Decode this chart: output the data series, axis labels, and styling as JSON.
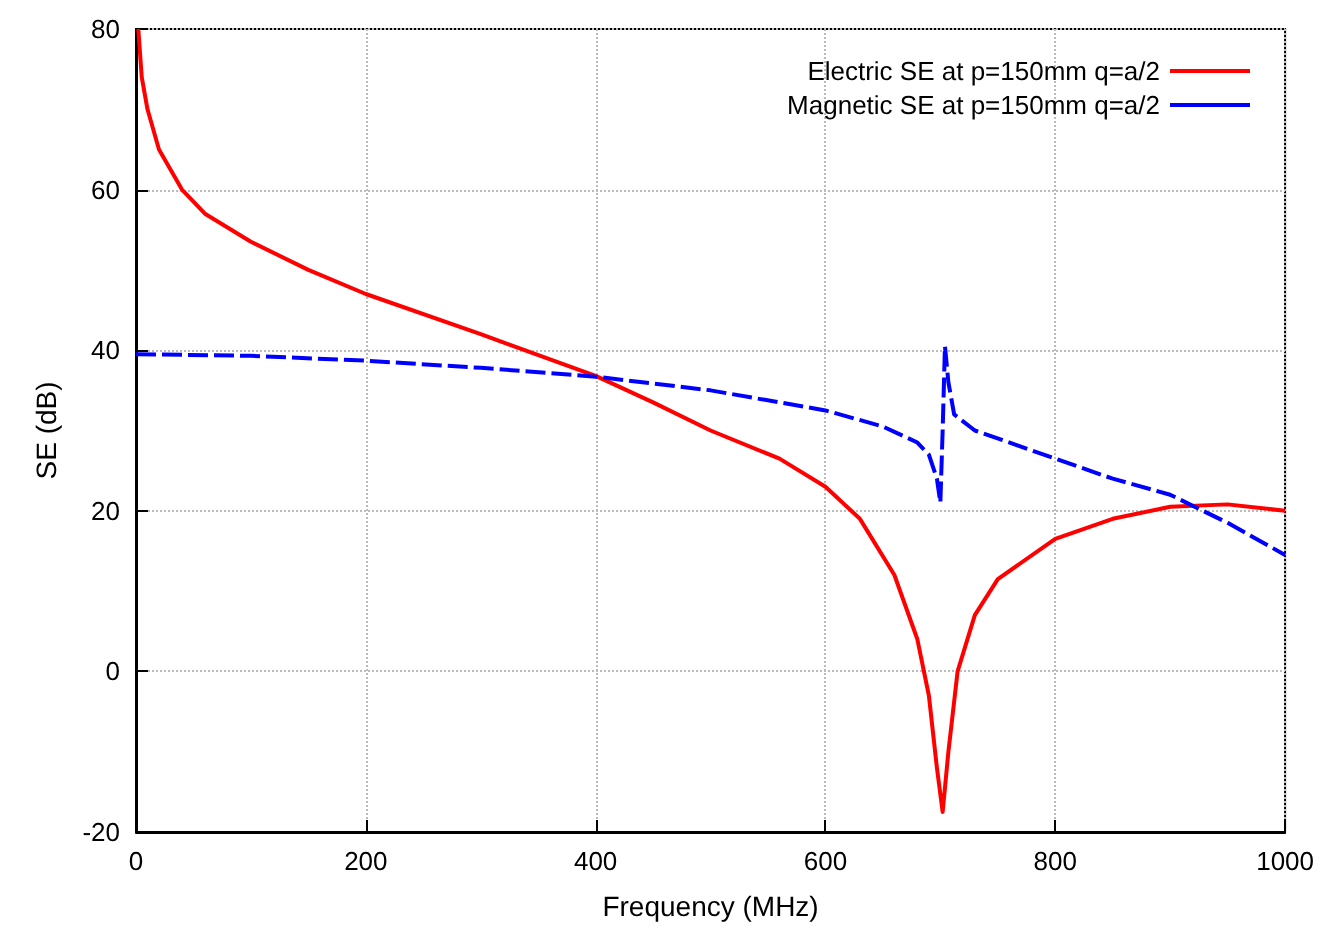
{
  "chart_data": {
    "type": "line",
    "xlabel": "Frequency (MHz)",
    "ylabel": "SE (dB)",
    "xlim": [
      0,
      1000
    ],
    "ylim": [
      -20,
      80
    ],
    "xticks": [
      0,
      200,
      400,
      600,
      800,
      1000
    ],
    "yticks": [
      -20,
      0,
      20,
      40,
      60,
      80
    ],
    "grid": true,
    "legend": "top right",
    "marker": "none",
    "series": [
      {
        "name": "Electric SE at p=150mm q=a/2",
        "color": "#ff0000",
        "line_style": "solid",
        "x": [
          2,
          5,
          10,
          20,
          40,
          60,
          100,
          150,
          200,
          300,
          400,
          450,
          500,
          560,
          600,
          630,
          660,
          680,
          690,
          697,
          702,
          707,
          715,
          730,
          750,
          800,
          850,
          900,
          950,
          1000
        ],
        "values": [
          80,
          74,
          70,
          65,
          60,
          57,
          53.5,
          50,
          47,
          42,
          36.8,
          33.5,
          30,
          26.5,
          23,
          19,
          12,
          4,
          -3,
          -12,
          -17.5,
          -10,
          0,
          7,
          11.5,
          16.5,
          19,
          20.5,
          20.8,
          20
        ]
      },
      {
        "name": "Magnetic SE at p=150mm q=a/2",
        "color": "#0000ff",
        "line_style": "dashed",
        "x": [
          0,
          100,
          200,
          300,
          400,
          500,
          600,
          650,
          680,
          690,
          697,
          700,
          702,
          704,
          707,
          712,
          730,
          800,
          850,
          900,
          950,
          1000
        ],
        "values": [
          39.5,
          39.3,
          38.7,
          37.8,
          36.7,
          35,
          32.5,
          30.5,
          28.5,
          27,
          24,
          21,
          30,
          40.5,
          36,
          32,
          30,
          26.5,
          24,
          22,
          18.5,
          14.5
        ]
      }
    ]
  }
}
